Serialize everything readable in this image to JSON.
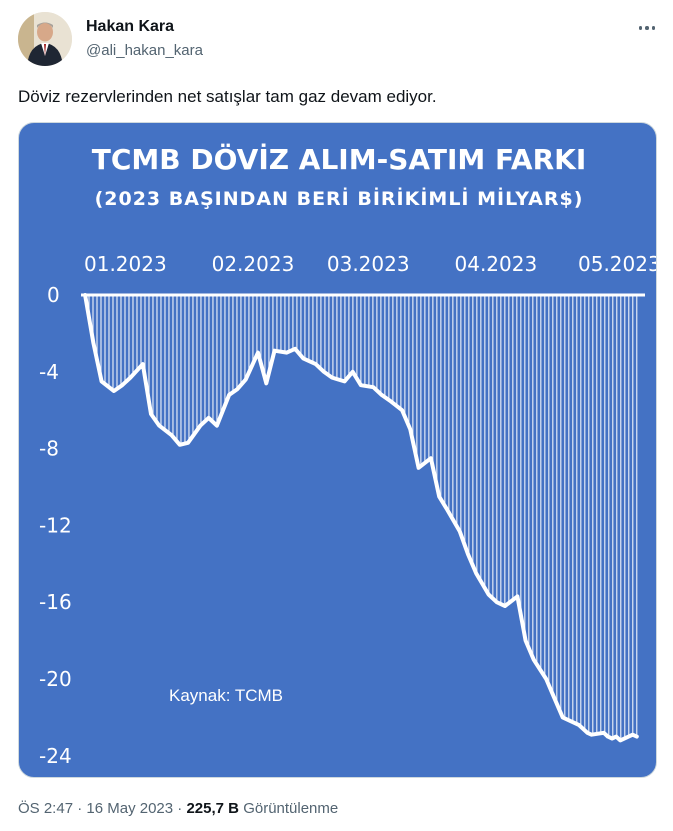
{
  "author": {
    "name": "Hakan Kara",
    "handle": "@ali_hakan_kara"
  },
  "tweet": {
    "text": "Döviz rezervlerinden net satışlar tam gaz devam ediyor.",
    "time": "ÖS 2:47",
    "date": "16 May 2023",
    "views_count": "225,7 B",
    "views_label": "Görüntülenme"
  },
  "icons": {
    "more": "more-horizontal-icon"
  },
  "colors": {
    "chart_background": "#4472c4",
    "chart_foreground": "#ffffff",
    "handle_text": "#536471"
  },
  "chart_data": {
    "type": "area",
    "title": "TCMB DÖVİZ ALIM-SATIM FARKI",
    "subtitle": "(2023 BAŞINDAN BERİ BİRİKİMLİ MİLYAR$)",
    "source_note": "Kaynak: TCMB",
    "x_tick_labels": [
      "01.2023",
      "02.2023",
      "03.2023",
      "04.2023",
      "05.2023"
    ],
    "y_ticks": [
      0,
      -4,
      -8,
      -12,
      -16,
      -20,
      -24
    ],
    "ylim": [
      -24,
      0
    ],
    "x_axis_position": "top",
    "grid": false,
    "series": [
      {
        "x": [
          "2023-01-02",
          "2023-01-04",
          "2023-01-06",
          "2023-01-09",
          "2023-01-11",
          "2023-01-13",
          "2023-01-16",
          "2023-01-18",
          "2023-01-20",
          "2023-01-23",
          "2023-01-25",
          "2023-01-27",
          "2023-01-30",
          "2023-02-01",
          "2023-02-03",
          "2023-02-06",
          "2023-02-08",
          "2023-02-10",
          "2023-02-13",
          "2023-02-15",
          "2023-02-17",
          "2023-02-20",
          "2023-02-22",
          "2023-02-24",
          "2023-02-27",
          "2023-03-01",
          "2023-03-03",
          "2023-03-06",
          "2023-03-08",
          "2023-03-10",
          "2023-03-13",
          "2023-03-15",
          "2023-03-17",
          "2023-03-20",
          "2023-03-22",
          "2023-03-24",
          "2023-03-27",
          "2023-03-29",
          "2023-03-31",
          "2023-04-03",
          "2023-04-05",
          "2023-04-07",
          "2023-04-10",
          "2023-04-12",
          "2023-04-14",
          "2023-04-17",
          "2023-04-19",
          "2023-04-21",
          "2023-04-24",
          "2023-04-26",
          "2023-04-28",
          "2023-05-02",
          "2023-05-04",
          "2023-05-05",
          "2023-05-08",
          "2023-05-09",
          "2023-05-10",
          "2023-05-11",
          "2023-05-12",
          "2023-05-15",
          "2023-05-16"
        ],
        "y": [
          0.0,
          -2.5,
          -4.5,
          -5.0,
          -4.7,
          -4.3,
          -3.6,
          -6.2,
          -6.8,
          -7.3,
          -7.8,
          -7.7,
          -6.8,
          -6.4,
          -6.8,
          -5.2,
          -4.9,
          -4.4,
          -3.0,
          -4.6,
          -2.9,
          -3.0,
          -2.8,
          -3.3,
          -3.6,
          -4.0,
          -4.3,
          -4.5,
          -4.0,
          -4.7,
          -4.8,
          -5.2,
          -5.5,
          -6.0,
          -7.0,
          -9.0,
          -8.5,
          -10.5,
          -11.2,
          -12.3,
          -13.5,
          -14.5,
          -15.6,
          -16.0,
          -16.2,
          -15.7,
          -18.0,
          -19.0,
          -20.0,
          -21.0,
          -22.0,
          -22.4,
          -22.8,
          -22.9,
          -22.8,
          -23.0,
          -23.1,
          -23.0,
          -23.2,
          -22.9,
          -23.0
        ]
      }
    ]
  }
}
